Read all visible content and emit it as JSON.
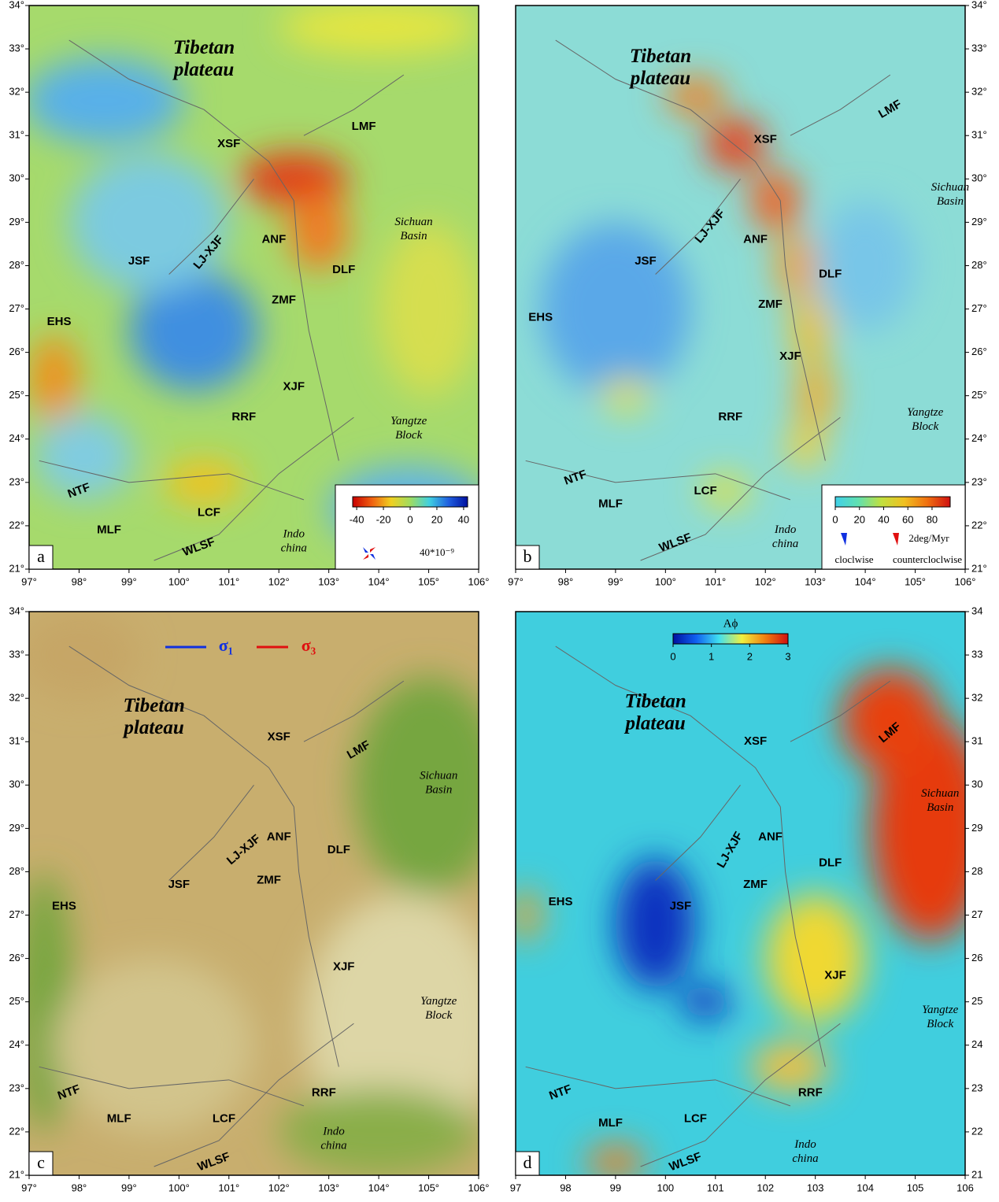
{
  "panels": [
    {
      "letter": "a",
      "xlim": [
        97,
        106
      ],
      "ylim": [
        21,
        34
      ],
      "xticks": [
        {
          "value": 97,
          "label": "97°"
        },
        {
          "value": 98,
          "label": "98°"
        },
        {
          "value": 99,
          "label": "99°"
        },
        {
          "value": 100,
          "label": "100°"
        },
        {
          "value": 101,
          "label": "101°"
        },
        {
          "value": 102,
          "label": "102°"
        },
        {
          "value": 103,
          "label": "103°"
        },
        {
          "value": 104,
          "label": "104°"
        },
        {
          "value": 105,
          "label": "105°"
        },
        {
          "value": 106,
          "label": "106°"
        }
      ],
      "yticks": [
        {
          "value": 21,
          "label": "21°"
        },
        {
          "value": 22,
          "label": "22°"
        },
        {
          "value": 23,
          "label": "23°"
        },
        {
          "value": 24,
          "label": "24°"
        },
        {
          "value": 25,
          "label": "25°"
        },
        {
          "value": 26,
          "label": "26°"
        },
        {
          "value": 27,
          "label": "27°"
        },
        {
          "value": 28,
          "label": "28°"
        },
        {
          "value": 29,
          "label": "29°"
        },
        {
          "value": 30,
          "label": "30°"
        },
        {
          "value": 31,
          "label": "31°"
        },
        {
          "value": 32,
          "label": "32°"
        },
        {
          "value": 33,
          "label": "33°"
        },
        {
          "value": 34,
          "label": "34°"
        }
      ],
      "title": {
        "lines": [
          "Tibetan",
          "plateau"
        ],
        "lon": 100.5,
        "lat": 33.0
      },
      "regions": [
        {
          "lines": [
            "Sichuan",
            "Basin"
          ],
          "lon": 104.7,
          "lat": 29.0
        },
        {
          "lines": [
            "Yangtze",
            "Block"
          ],
          "lon": 104.6,
          "lat": 24.4
        },
        {
          "lines": [
            "Indo",
            "china"
          ],
          "lon": 102.3,
          "lat": 21.8
        }
      ],
      "faults": [
        {
          "text": "LMF",
          "lon": 103.7,
          "lat": 31.2
        },
        {
          "text": "XSF",
          "lon": 101.0,
          "lat": 30.8
        },
        {
          "text": "LJ-XJF",
          "lon": 100.6,
          "lat": 28.3,
          "angle": -50
        },
        {
          "text": "ANF",
          "lon": 101.9,
          "lat": 28.6
        },
        {
          "text": "JSF",
          "lon": 99.2,
          "lat": 28.1
        },
        {
          "text": "DLF",
          "lon": 103.3,
          "lat": 27.9
        },
        {
          "text": "ZMF",
          "lon": 102.1,
          "lat": 27.2
        },
        {
          "text": "EHS",
          "lon": 97.6,
          "lat": 26.7
        },
        {
          "text": "XJF",
          "lon": 102.3,
          "lat": 25.2
        },
        {
          "text": "RRF",
          "lon": 101.3,
          "lat": 24.5
        },
        {
          "text": "NTF",
          "lon": 98.0,
          "lat": 22.8,
          "angle": -20
        },
        {
          "text": "LCF",
          "lon": 100.6,
          "lat": 22.3
        },
        {
          "text": "MLF",
          "lon": 98.6,
          "lat": 21.9
        },
        {
          "text": "WLSF",
          "lon": 100.4,
          "lat": 21.5,
          "angle": -20
        }
      ],
      "colorbar": {
        "lim": [
          -43,
          43
        ],
        "ticks": [
          -40,
          -20,
          0,
          20,
          40
        ],
        "colors": [
          "#c80000",
          "#f06010",
          "#f0d020",
          "#a0dc60",
          "#40d0e0",
          "#2060e0",
          "#0010a0"
        ]
      },
      "legend": {
        "scale": "40*10⁻⁹",
        "colors": [
          "#1030e0",
          "#e01010"
        ]
      }
    },
    {
      "letter": "b",
      "xlim": [
        97,
        106
      ],
      "ylim": [
        21,
        34
      ],
      "xticks": [
        {
          "value": 97,
          "label": "97°"
        },
        {
          "value": 98,
          "label": "98°"
        },
        {
          "value": 99,
          "label": "99°"
        },
        {
          "value": 100,
          "label": "100°"
        },
        {
          "value": 101,
          "label": "101°"
        },
        {
          "value": 102,
          "label": "102°"
        },
        {
          "value": 103,
          "label": "103°"
        },
        {
          "value": 104,
          "label": "104°"
        },
        {
          "value": 105,
          "label": "105°"
        },
        {
          "value": 106,
          "label": "106°"
        }
      ],
      "yticks": [
        {
          "value": 21,
          "label": "21°"
        },
        {
          "value": 22,
          "label": "22°"
        },
        {
          "value": 23,
          "label": "23°"
        },
        {
          "value": 24,
          "label": "24°"
        },
        {
          "value": 25,
          "label": "25°"
        },
        {
          "value": 26,
          "label": "26°"
        },
        {
          "value": 27,
          "label": "27°"
        },
        {
          "value": 28,
          "label": "28°"
        },
        {
          "value": 29,
          "label": "29°"
        },
        {
          "value": 30,
          "label": "30°"
        },
        {
          "value": 31,
          "label": "31°"
        },
        {
          "value": 32,
          "label": "32°"
        },
        {
          "value": 33,
          "label": "33°"
        },
        {
          "value": 34,
          "label": "34°"
        }
      ],
      "title": {
        "lines": [
          "Tibetan",
          "plateau"
        ],
        "lon": 99.9,
        "lat": 32.8
      },
      "regions": [
        {
          "lines": [
            "Sichuan",
            "Basin"
          ],
          "lon": 105.7,
          "lat": 29.8
        },
        {
          "lines": [
            "Yangtze",
            "Block"
          ],
          "lon": 105.2,
          "lat": 24.6
        },
        {
          "lines": [
            "Indo",
            "china"
          ],
          "lon": 102.4,
          "lat": 21.9
        }
      ],
      "faults": [
        {
          "text": "LMF",
          "lon": 104.5,
          "lat": 31.6,
          "angle": -30
        },
        {
          "text": "XSF",
          "lon": 102.0,
          "lat": 30.9
        },
        {
          "text": "LJ-XJF",
          "lon": 100.9,
          "lat": 28.9,
          "angle": -50
        },
        {
          "text": "ANF",
          "lon": 101.8,
          "lat": 28.6
        },
        {
          "text": "JSF",
          "lon": 99.6,
          "lat": 28.1
        },
        {
          "text": "DLF",
          "lon": 103.3,
          "lat": 27.8
        },
        {
          "text": "ZMF",
          "lon": 102.1,
          "lat": 27.1
        },
        {
          "text": "EHS",
          "lon": 97.5,
          "lat": 26.8
        },
        {
          "text": "XJF",
          "lon": 102.5,
          "lat": 25.9
        },
        {
          "text": "RRF",
          "lon": 101.3,
          "lat": 24.5
        },
        {
          "text": "NTF",
          "lon": 98.2,
          "lat": 23.1,
          "angle": -20
        },
        {
          "text": "LCF",
          "lon": 100.8,
          "lat": 22.8
        },
        {
          "text": "MLF",
          "lon": 98.9,
          "lat": 22.5
        },
        {
          "text": "WLSF",
          "lon": 100.2,
          "lat": 21.6,
          "angle": -20
        }
      ],
      "colorbar": {
        "lim": [
          0,
          95
        ],
        "ticks": [
          0,
          20,
          40,
          60,
          80
        ],
        "colors": [
          "#40d0e8",
          "#60e0b0",
          "#c0e040",
          "#f0c020",
          "#f07010",
          "#d01010"
        ]
      },
      "legend": {
        "scale": "2deg/Myr",
        "cw": "cloclwise",
        "ccw": "countercloclwise",
        "colors": [
          "#1030e0",
          "#e01010"
        ]
      }
    },
    {
      "letter": "c",
      "xlim": [
        97,
        106
      ],
      "ylim": [
        21,
        34
      ],
      "xticks": [
        {
          "value": 97,
          "label": "97°"
        },
        {
          "value": 98,
          "label": "98°"
        },
        {
          "value": 99,
          "label": "99°"
        },
        {
          "value": 100,
          "label": "100°"
        },
        {
          "value": 101,
          "label": "101°"
        },
        {
          "value": 102,
          "label": "102°"
        },
        {
          "value": 103,
          "label": "103°"
        },
        {
          "value": 104,
          "label": "104°"
        },
        {
          "value": 105,
          "label": "105°"
        },
        {
          "value": 106,
          "label": "106°"
        }
      ],
      "yticks": [
        {
          "value": 21,
          "label": "21°"
        },
        {
          "value": 22,
          "label": "22°"
        },
        {
          "value": 23,
          "label": "23°"
        },
        {
          "value": 24,
          "label": "24°"
        },
        {
          "value": 25,
          "label": "25°"
        },
        {
          "value": 26,
          "label": "26°"
        },
        {
          "value": 27,
          "label": "27°"
        },
        {
          "value": 28,
          "label": "28°"
        },
        {
          "value": 29,
          "label": "29°"
        },
        {
          "value": 30,
          "label": "30°"
        },
        {
          "value": 31,
          "label": "31°"
        },
        {
          "value": 32,
          "label": "32°"
        },
        {
          "value": 33,
          "label": "33°"
        },
        {
          "value": 34,
          "label": "34°"
        }
      ],
      "title": {
        "lines": [
          "Tibetan",
          "plateau"
        ],
        "lon": 99.5,
        "lat": 31.8
      },
      "regions": [
        {
          "lines": [
            "Sichuan",
            "Basin"
          ],
          "lon": 105.2,
          "lat": 30.2
        },
        {
          "lines": [
            "Yangtze",
            "Block"
          ],
          "lon": 105.2,
          "lat": 25.0
        },
        {
          "lines": [
            "Indo",
            "china"
          ],
          "lon": 103.1,
          "lat": 22.0
        }
      ],
      "faults": [
        {
          "text": "XSF",
          "lon": 102.0,
          "lat": 31.1
        },
        {
          "text": "LMF",
          "lon": 103.6,
          "lat": 30.8,
          "angle": -30
        },
        {
          "text": "LJ-XJF",
          "lon": 101.3,
          "lat": 28.5,
          "angle": -40
        },
        {
          "text": "ANF",
          "lon": 102.0,
          "lat": 28.8
        },
        {
          "text": "DLF",
          "lon": 103.2,
          "lat": 28.5
        },
        {
          "text": "JSF",
          "lon": 100.0,
          "lat": 27.7
        },
        {
          "text": "ZMF",
          "lon": 101.8,
          "lat": 27.8
        },
        {
          "text": "EHS",
          "lon": 97.7,
          "lat": 27.2
        },
        {
          "text": "XJF",
          "lon": 103.3,
          "lat": 25.8
        },
        {
          "text": "NTF",
          "lon": 97.8,
          "lat": 22.9,
          "angle": -20
        },
        {
          "text": "RRF",
          "lon": 102.9,
          "lat": 22.9
        },
        {
          "text": "MLF",
          "lon": 98.8,
          "lat": 22.3
        },
        {
          "text": "LCF",
          "lon": 100.9,
          "lat": 22.3
        },
        {
          "text": "WLSF",
          "lon": 100.7,
          "lat": 21.3,
          "angle": -20
        }
      ],
      "legend": {
        "s1": "σ₁",
        "s3": "σ₃",
        "colors": [
          "#1030e0",
          "#e01010"
        ]
      }
    },
    {
      "letter": "d",
      "xlim": [
        97,
        106
      ],
      "ylim": [
        21,
        34
      ],
      "xticks": [
        97,
        98,
        99,
        100,
        101,
        102,
        103,
        104,
        105,
        106
      ],
      "yticks": [
        21,
        22,
        23,
        24,
        25,
        26,
        27,
        28,
        29,
        30,
        31,
        32,
        33,
        34
      ],
      "title": {
        "lines": [
          "Tibetan",
          "plateau"
        ],
        "lon": 99.8,
        "lat": 31.9
      },
      "regions": [
        {
          "lines": [
            "Sichuan",
            "Basin"
          ],
          "lon": 105.5,
          "lat": 29.8
        },
        {
          "lines": [
            "Yangtze",
            "Block"
          ],
          "lon": 105.5,
          "lat": 24.8
        },
        {
          "lines": [
            "Indo",
            "china"
          ],
          "lon": 102.8,
          "lat": 21.7
        }
      ],
      "faults": [
        {
          "text": "XSF",
          "lon": 101.8,
          "lat": 31.0
        },
        {
          "text": "LMF",
          "lon": 104.5,
          "lat": 31.2,
          "angle": -40
        },
        {
          "text": "LJ-XJF",
          "lon": 101.3,
          "lat": 28.5,
          "angle": -60
        },
        {
          "text": "ANF",
          "lon": 102.1,
          "lat": 28.8
        },
        {
          "text": "DLF",
          "lon": 103.3,
          "lat": 28.2
        },
        {
          "text": "ZMF",
          "lon": 101.8,
          "lat": 27.7
        },
        {
          "text": "JSF",
          "lon": 100.3,
          "lat": 27.2
        },
        {
          "text": "EHS",
          "lon": 97.9,
          "lat": 27.3
        },
        {
          "text": "XJF",
          "lon": 103.4,
          "lat": 25.6
        },
        {
          "text": "NTF",
          "lon": 97.9,
          "lat": 22.9,
          "angle": -20
        },
        {
          "text": "RRF",
          "lon": 102.9,
          "lat": 22.9
        },
        {
          "text": "MLF",
          "lon": 98.9,
          "lat": 22.2
        },
        {
          "text": "LCF",
          "lon": 100.6,
          "lat": 22.3
        },
        {
          "text": "WLSF",
          "lon": 100.4,
          "lat": 21.3,
          "angle": -20
        }
      ],
      "colorbar": {
        "title": "Aϕ",
        "lim": [
          0,
          3
        ],
        "ticks": [
          0,
          1,
          2,
          3
        ],
        "colors": [
          "#0010a0",
          "#1060f0",
          "#40e0f0",
          "#f0f040",
          "#f08010",
          "#d01010"
        ]
      }
    }
  ]
}
